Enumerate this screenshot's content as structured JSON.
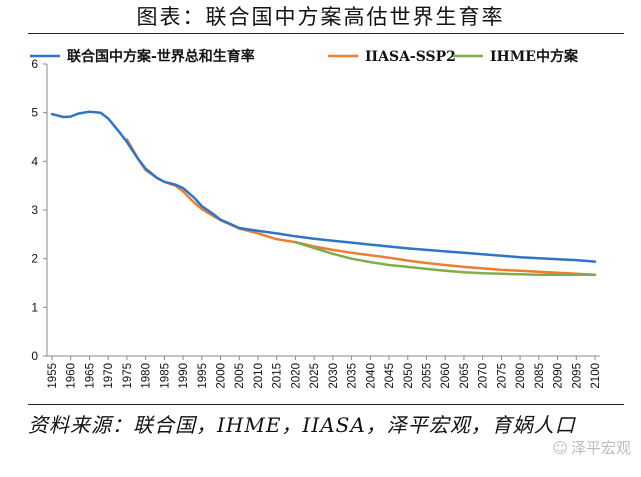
{
  "header": {
    "title": "图表：联合国中方案高估世界生育率"
  },
  "footer": {
    "source": "资料来源：联合国，IHME，IIASA，泽平宏观，育娲人口",
    "watermark": "泽平宏观",
    "watermark_icon": "wechat-icon"
  },
  "colors": {
    "un": "#2e75c4",
    "iiasa": "#ed7d31",
    "ihme": "#7fad4a",
    "axis": "#888888",
    "text": "#111111"
  },
  "chart_data": {
    "type": "line",
    "title": "图表：联合国中方案高估世界生育率",
    "xlabel": "",
    "ylabel": "",
    "xlim": [
      1955,
      2100
    ],
    "ylim": [
      0,
      6
    ],
    "yticks": [
      0,
      1,
      2,
      3,
      4,
      5,
      6
    ],
    "xticks": [
      1955,
      1960,
      1965,
      1970,
      1975,
      1980,
      1985,
      1990,
      1995,
      2000,
      2005,
      2010,
      2015,
      2020,
      2025,
      2030,
      2035,
      2040,
      2045,
      2050,
      2055,
      2060,
      2065,
      2070,
      2075,
      2080,
      2085,
      2090,
      2095,
      2100
    ],
    "grid": false,
    "legend": "top",
    "series": [
      {
        "name": "联合国中方案-世界总和生育率",
        "color": "#2e75c4",
        "x": [
          1955,
          1958,
          1960,
          1962,
          1965,
          1968,
          1970,
          1973,
          1975,
          1978,
          1980,
          1983,
          1985,
          1988,
          1990,
          1993,
          1995,
          1998,
          2000,
          2003,
          2005,
          2010,
          2015,
          2020,
          2025,
          2030,
          2035,
          2040,
          2045,
          2050,
          2055,
          2060,
          2065,
          2070,
          2075,
          2080,
          2085,
          2090,
          2095,
          2100
        ],
        "y": [
          4.97,
          4.91,
          4.92,
          4.98,
          5.02,
          5.0,
          4.88,
          4.6,
          4.4,
          4.05,
          3.85,
          3.66,
          3.58,
          3.52,
          3.45,
          3.25,
          3.08,
          2.92,
          2.8,
          2.7,
          2.63,
          2.57,
          2.52,
          2.46,
          2.41,
          2.37,
          2.33,
          2.29,
          2.25,
          2.21,
          2.18,
          2.15,
          2.12,
          2.09,
          2.06,
          2.03,
          2.01,
          1.99,
          1.97,
          1.94
        ]
      },
      {
        "name": "IIASA-SSP2",
        "color": "#ed7d31",
        "x": [
          1975,
          1978,
          1980,
          1983,
          1985,
          1988,
          1990,
          1993,
          1995,
          1998,
          2000,
          2003,
          2005,
          2010,
          2015,
          2020,
          2025,
          2030,
          2035,
          2040,
          2045,
          2050,
          2055,
          2060,
          2065,
          2070,
          2075,
          2080,
          2085,
          2090,
          2095,
          2100
        ],
        "y": [
          4.45,
          4.05,
          3.82,
          3.66,
          3.58,
          3.5,
          3.38,
          3.15,
          3.02,
          2.88,
          2.79,
          2.69,
          2.62,
          2.52,
          2.4,
          2.34,
          2.25,
          2.18,
          2.12,
          2.07,
          2.02,
          1.96,
          1.91,
          1.87,
          1.83,
          1.8,
          1.77,
          1.75,
          1.73,
          1.71,
          1.69,
          1.67
        ]
      },
      {
        "name": "IHME中方案",
        "color": "#7fad4a",
        "x": [
          2020,
          2025,
          2030,
          2035,
          2040,
          2045,
          2050,
          2055,
          2060,
          2065,
          2070,
          2075,
          2080,
          2085,
          2090,
          2095,
          2100
        ],
        "y": [
          2.34,
          2.22,
          2.1,
          2.0,
          1.93,
          1.87,
          1.83,
          1.79,
          1.75,
          1.72,
          1.7,
          1.69,
          1.68,
          1.67,
          1.67,
          1.67,
          1.67
        ]
      }
    ]
  }
}
